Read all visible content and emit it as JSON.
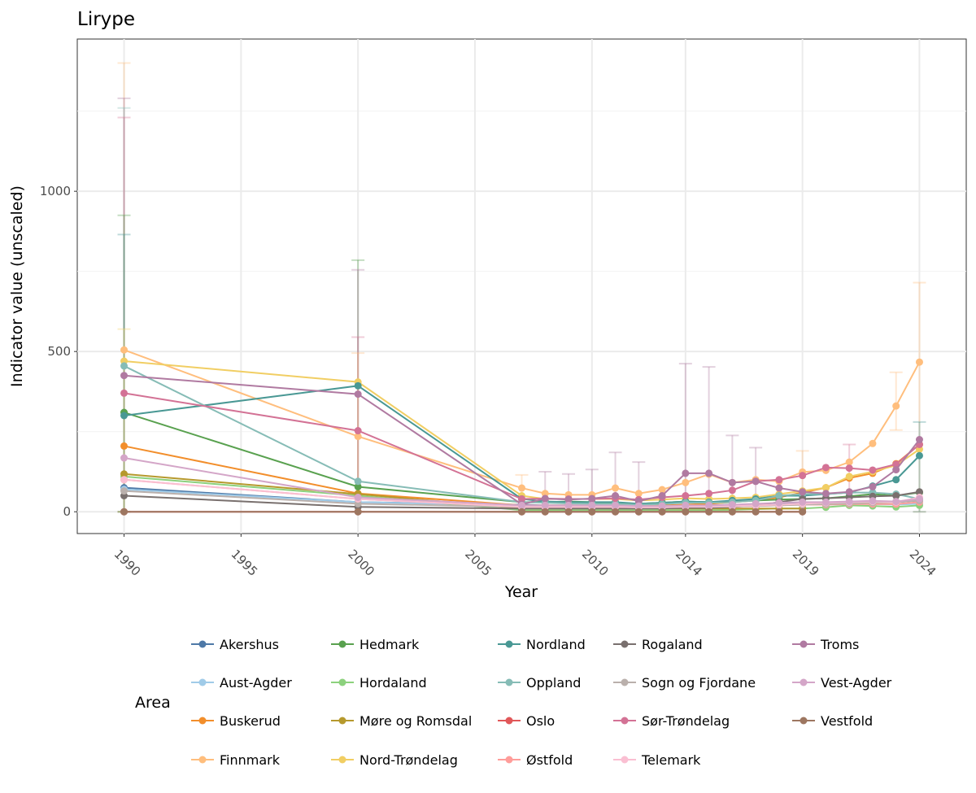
{
  "chart_data": {
    "type": "line",
    "title": "Lirype",
    "xlabel": "Year",
    "ylabel": "Indicator value (unscaled)",
    "xlim": [
      1988,
      2026
    ],
    "ylim": [
      -68,
      1475
    ],
    "x_ticks": [
      1990,
      1995,
      2000,
      2005,
      2010,
      2014,
      2019,
      2024
    ],
    "y_ticks": [
      0,
      500,
      1000
    ],
    "grid": true,
    "legend_title": "Area",
    "legend_position": "bottom",
    "x": [
      1990,
      2000,
      2007,
      2008,
      2009,
      2010,
      2011,
      2012,
      2013,
      2014,
      2015,
      2016,
      2017,
      2018,
      2019,
      2020,
      2021,
      2022,
      2023,
      2024
    ],
    "series": [
      {
        "name": "Akershus",
        "color": "#4e79a7",
        "values": [
          75,
          30,
          22,
          20,
          20,
          20,
          20,
          18,
          18,
          20,
          20,
          22,
          22,
          25,
          28,
          28,
          30,
          30,
          30,
          35
        ]
      },
      {
        "name": "Aust-Agder",
        "color": "#a0cbe8",
        "values": [
          70,
          30,
          20,
          18,
          18,
          18,
          18,
          16,
          16,
          18,
          18,
          20,
          20,
          22,
          22,
          22,
          24,
          24,
          22,
          25
        ]
      },
      {
        "name": "Buskerud",
        "color": "#f28e2b",
        "values": [
          205,
          57,
          20,
          20,
          20,
          20,
          20,
          18,
          20,
          22,
          25,
          30,
          35,
          45,
          60,
          75,
          105,
          120,
          150,
          210
        ]
      },
      {
        "name": "Finnmark",
        "color": "#ffbe7d",
        "values": [
          505,
          235,
          74,
          57,
          53,
          53,
          74,
          57,
          69,
          91,
          117,
          91,
          100,
          95,
          124,
          129,
          155,
          213,
          330,
          467
        ]
      },
      {
        "name": "Hedmark",
        "color": "#59a14f",
        "values": [
          310,
          78,
          30,
          30,
          32,
          30,
          28,
          25,
          28,
          32,
          30,
          32,
          35,
          38,
          40,
          42,
          48,
          55,
          50,
          60
        ]
      },
      {
        "name": "Hordaland",
        "color": "#8cd17d",
        "values": [
          110,
          50,
          5,
          5,
          5,
          5,
          5,
          5,
          5,
          5,
          5,
          6,
          8,
          10,
          10,
          14,
          20,
          18,
          15,
          20
        ]
      },
      {
        "name": "Møre og Romsdal",
        "color": "#b6992d",
        "values": [
          118,
          55,
          10,
          10,
          10,
          10,
          10,
          10,
          10,
          10,
          10,
          10,
          10,
          10,
          10,
          null,
          null,
          null,
          null,
          null
        ]
      },
      {
        "name": "Nord-Trøndelag",
        "color": "#f1ce63",
        "values": [
          470,
          405,
          50,
          40,
          40,
          40,
          40,
          35,
          38,
          42,
          40,
          42,
          45,
          55,
          65,
          75,
          110,
          125,
          145,
          195
        ]
      },
      {
        "name": "Nordland",
        "color": "#499894",
        "values": [
          300,
          393,
          40,
          32,
          30,
          30,
          30,
          25,
          28,
          32,
          30,
          35,
          40,
          50,
          50,
          55,
          60,
          80,
          100,
          175
        ]
      },
      {
        "name": "Oppland",
        "color": "#86bcb6",
        "values": [
          455,
          95,
          30,
          28,
          26,
          25,
          25,
          22,
          24,
          28,
          28,
          30,
          35,
          50,
          55,
          55,
          60,
          60,
          55,
          40
        ]
      },
      {
        "name": "Oslo",
        "color": "#e15759",
        "values": [
          0,
          0,
          0,
          0,
          0,
          0,
          0,
          0,
          0,
          0,
          0,
          0,
          0,
          0,
          0,
          null,
          null,
          null,
          null,
          null
        ]
      },
      {
        "name": "Østfold",
        "color": "#ff9d9a",
        "values": [
          100,
          40,
          15,
          15,
          15,
          15,
          15,
          14,
          14,
          15,
          15,
          16,
          18,
          20,
          22,
          22,
          24,
          24,
          24,
          30
        ]
      },
      {
        "name": "Rogaland",
        "color": "#79706e",
        "values": [
          50,
          15,
          10,
          10,
          10,
          10,
          10,
          10,
          10,
          12,
          12,
          15,
          20,
          30,
          40,
          42,
          45,
          48,
          50,
          62
        ]
      },
      {
        "name": "Sogn og Fjordane",
        "color": "#bab0ac",
        "values": [
          65,
          25,
          15,
          15,
          15,
          15,
          15,
          14,
          14,
          15,
          15,
          16,
          18,
          20,
          22,
          24,
          26,
          28,
          30,
          35
        ]
      },
      {
        "name": "Sør-Trøndelag",
        "color": "#d37295",
        "values": [
          370,
          253,
          40,
          41,
          40,
          40,
          42,
          38,
          45,
          50,
          57,
          67,
          95,
          100,
          113,
          138,
          136,
          130,
          148,
          210
        ]
      },
      {
        "name": "Telemark",
        "color": "#fabfd2",
        "values": [
          100,
          40,
          15,
          15,
          15,
          15,
          15,
          14,
          14,
          16,
          16,
          18,
          20,
          22,
          25,
          28,
          30,
          32,
          30,
          45
        ]
      },
      {
        "name": "Troms",
        "color": "#b07aa1",
        "values": [
          425,
          367,
          23,
          41,
          38,
          41,
          50,
          33,
          50,
          120,
          120,
          91,
          95,
          74,
          62,
          57,
          62,
          78,
          131,
          225
        ]
      },
      {
        "name": "Vest-Agder",
        "color": "#d4a6c8",
        "values": [
          168,
          45,
          20,
          20,
          20,
          20,
          20,
          18,
          18,
          20,
          20,
          22,
          25,
          28,
          30,
          30,
          32,
          34,
          32,
          40
        ]
      },
      {
        "name": "Vestfold",
        "color": "#9d7660",
        "values": [
          0,
          0,
          0,
          0,
          0,
          0,
          0,
          0,
          0,
          0,
          0,
          0,
          0,
          0,
          0,
          null,
          null,
          null,
          null,
          null
        ]
      }
    ],
    "error_bars": [
      {
        "series": "Finnmark",
        "x": 1990,
        "low": 0,
        "high": 1400
      },
      {
        "series": "Troms",
        "x": 1990,
        "low": 0,
        "high": 1290
      },
      {
        "series": "Oppland",
        "x": 1990,
        "low": 0,
        "high": 1260
      },
      {
        "series": "Sør-Trøndelag",
        "x": 1990,
        "low": 0,
        "high": 1230
      },
      {
        "series": "Hedmark",
        "x": 1990,
        "low": 0,
        "high": 925
      },
      {
        "series": "Nordland",
        "x": 1990,
        "low": 0,
        "high": 865
      },
      {
        "series": "Nord-Trøndelag",
        "x": 1990,
        "low": 0,
        "high": 570
      },
      {
        "series": "Hedmark",
        "x": 2000,
        "low": 0,
        "high": 785
      },
      {
        "series": "Troms",
        "x": 2000,
        "low": 0,
        "high": 755
      },
      {
        "series": "Sør-Trøndelag",
        "x": 2000,
        "low": 0,
        "high": 545
      },
      {
        "series": "Finnmark",
        "x": 2000,
        "low": 0,
        "high": 495
      },
      {
        "series": "Finnmark",
        "x": 2007,
        "low": 20,
        "high": 115
      },
      {
        "series": "Troms",
        "x": 2008,
        "low": 0,
        "high": 125
      },
      {
        "series": "Troms",
        "x": 2009,
        "low": 0,
        "high": 118
      },
      {
        "series": "Troms",
        "x": 2010,
        "low": 0,
        "high": 132
      },
      {
        "series": "Troms",
        "x": 2011,
        "low": 0,
        "high": 185
      },
      {
        "series": "Troms",
        "x": 2012,
        "low": 0,
        "high": 155
      },
      {
        "series": "Troms",
        "x": 2014,
        "low": 0,
        "high": 462
      },
      {
        "series": "Troms",
        "x": 2015,
        "low": 0,
        "high": 452
      },
      {
        "series": "Troms",
        "x": 2016,
        "low": 0,
        "high": 238
      },
      {
        "series": "Troms",
        "x": 2017,
        "low": 0,
        "high": 200
      },
      {
        "series": "Finnmark",
        "x": 2019,
        "low": 60,
        "high": 190
      },
      {
        "series": "Sør-Trøndelag",
        "x": 2021,
        "low": 60,
        "high": 210
      },
      {
        "series": "Finnmark",
        "x": 2023,
        "low": 255,
        "high": 435
      },
      {
        "series": "Finnmark",
        "x": 2024,
        "low": 0,
        "high": 715
      },
      {
        "series": "Nordland",
        "x": 2024,
        "low": 0,
        "high": 280
      }
    ]
  }
}
